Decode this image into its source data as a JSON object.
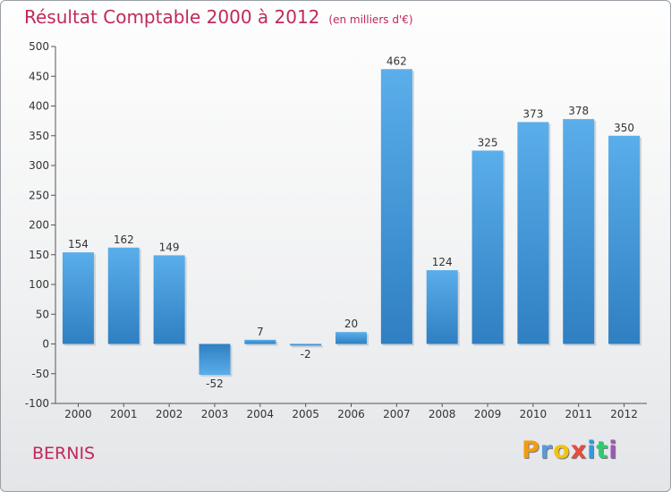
{
  "chart_data": {
    "type": "bar",
    "title": "Résultat Comptable 2000 à 2012",
    "subtitle": "(en milliers d'€)",
    "categories": [
      "2000",
      "2001",
      "2002",
      "2003",
      "2004",
      "2005",
      "2006",
      "2007",
      "2008",
      "2009",
      "2010",
      "2011",
      "2012"
    ],
    "values": [
      154,
      162,
      149,
      -52,
      7,
      -2,
      20,
      462,
      124,
      325,
      373,
      378,
      350
    ],
    "data_labels": [
      "154",
      "162",
      "149",
      "-52",
      "7",
      "-2",
      "20",
      "462",
      "124",
      "325",
      "373",
      "378",
      "350"
    ],
    "ylim": [
      -100,
      500
    ],
    "yticks": [
      -100,
      -50,
      0,
      50,
      100,
      150,
      200,
      250,
      300,
      350,
      400,
      450,
      500
    ],
    "ytick_labels": [
      "-100",
      "-50",
      "0",
      "50",
      "100",
      "150",
      "200",
      "250",
      "300",
      "350",
      "400",
      "450",
      "500"
    ],
    "xlabel": "",
    "ylabel": "",
    "grid": false,
    "bar_color": "#3d8fd4"
  },
  "footer": {
    "city": "BERNIS",
    "brand": [
      "P",
      "r",
      "o",
      "x",
      "i",
      "t",
      "i"
    ],
    "brand_colors": [
      "#f39c12",
      "#5a9ad5",
      "#f1c40f",
      "#e74c3c",
      "#3498db",
      "#2ecc71",
      "#9b59b6"
    ]
  }
}
